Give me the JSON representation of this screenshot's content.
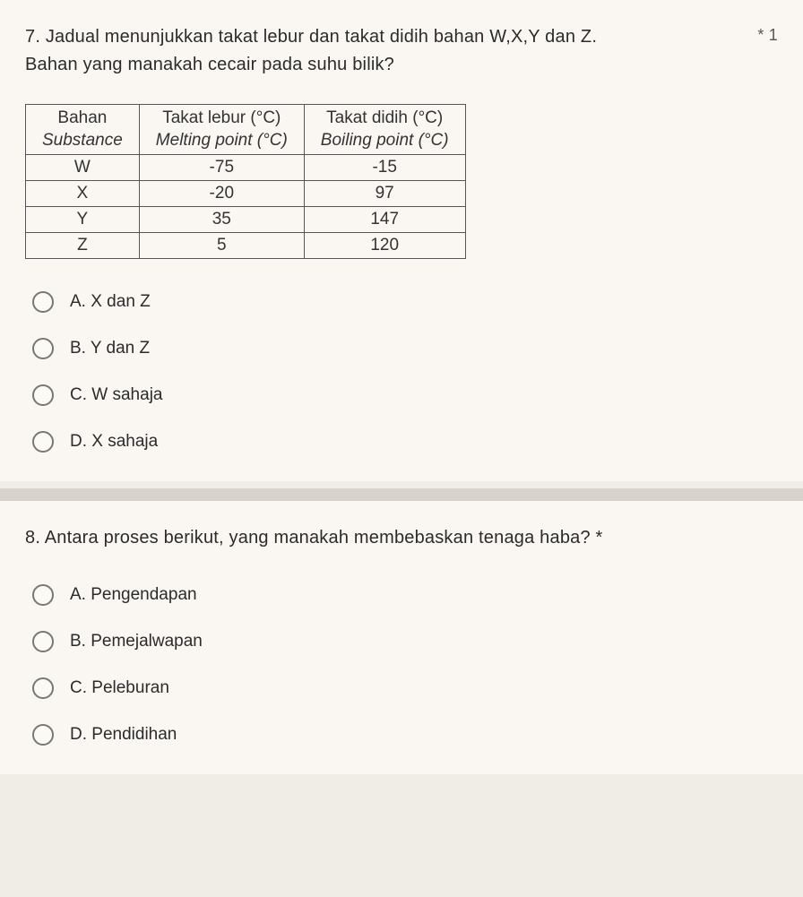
{
  "q7": {
    "number_text": "7. Jadual menunjukkan takat lebur dan takat didih bahan W,X,Y dan Z.",
    "sub_text": "Bahan yang manakah cecair pada suhu bilik?",
    "points_mark": "* 1",
    "table": {
      "headers": {
        "col1_top": "Bahan",
        "col1_bot": "Substance",
        "col2_top": "Takat lebur (°C)",
        "col2_bot": "Melting point (°C)",
        "col3_top": "Takat didih (°C)",
        "col3_bot": "Boiling point (°C)"
      },
      "rows": [
        {
          "sub": "W",
          "mp": "-75",
          "bp": "-15"
        },
        {
          "sub": "X",
          "mp": "-20",
          "bp": "97"
        },
        {
          "sub": "Y",
          "mp": "35",
          "bp": "147"
        },
        {
          "sub": "Z",
          "mp": "5",
          "bp": "120"
        }
      ]
    },
    "options": {
      "a": "A. X dan Z",
      "b": "B. Y dan Z",
      "c": "C. W sahaja",
      "d": "D. X sahaja"
    }
  },
  "q8": {
    "text": "8. Antara proses berikut, yang manakah membebaskan tenaga haba? *",
    "options": {
      "a": "A. Pengendapan",
      "b": "B. Pemejalwapan",
      "c": "C. Peleburan",
      "d": "D. Pendidihan"
    }
  }
}
